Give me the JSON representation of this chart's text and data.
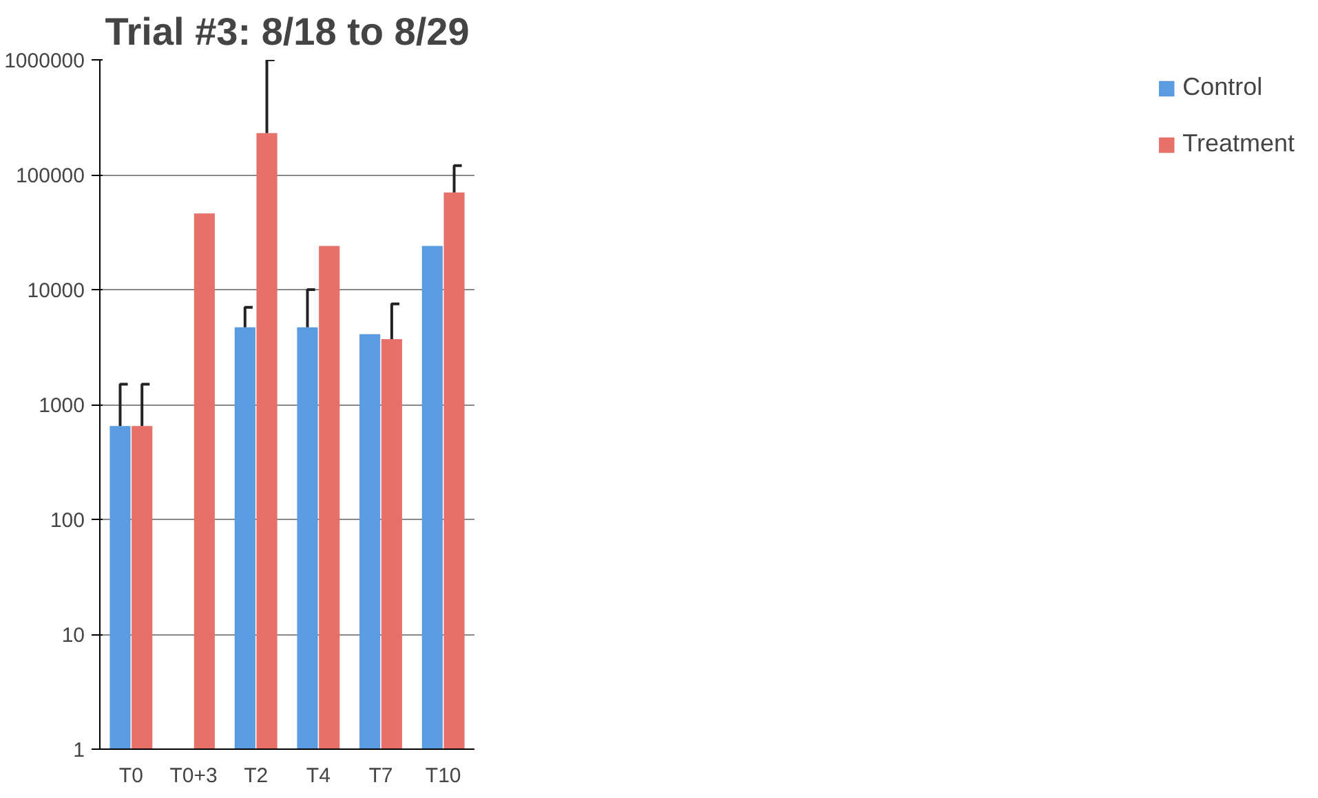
{
  "chart_data": {
    "type": "bar",
    "title": "Trial #3: 8/18 to 8/29",
    "categories": [
      "T0",
      "T0+3",
      "T2",
      "T4",
      "T7",
      "T10"
    ],
    "log": true,
    "ylim": [
      1,
      1000000
    ],
    "yticks": [
      1,
      10,
      100,
      1000,
      10000,
      100000,
      1000000
    ],
    "grid": "y",
    "legend": "right",
    "series": [
      {
        "name": "Control",
        "color": "#5b9be0",
        "values": [
          650,
          null,
          4700,
          4700,
          4100,
          24000
        ],
        "errors": [
          850,
          null,
          2300,
          5300,
          null,
          null
        ]
      },
      {
        "name": "Treatment",
        "color": "#e8706a",
        "values": [
          650,
          46000,
          230000,
          24000,
          3700,
          70000
        ],
        "errors": [
          850,
          null,
          770000,
          null,
          3800,
          50000
        ]
      }
    ]
  }
}
